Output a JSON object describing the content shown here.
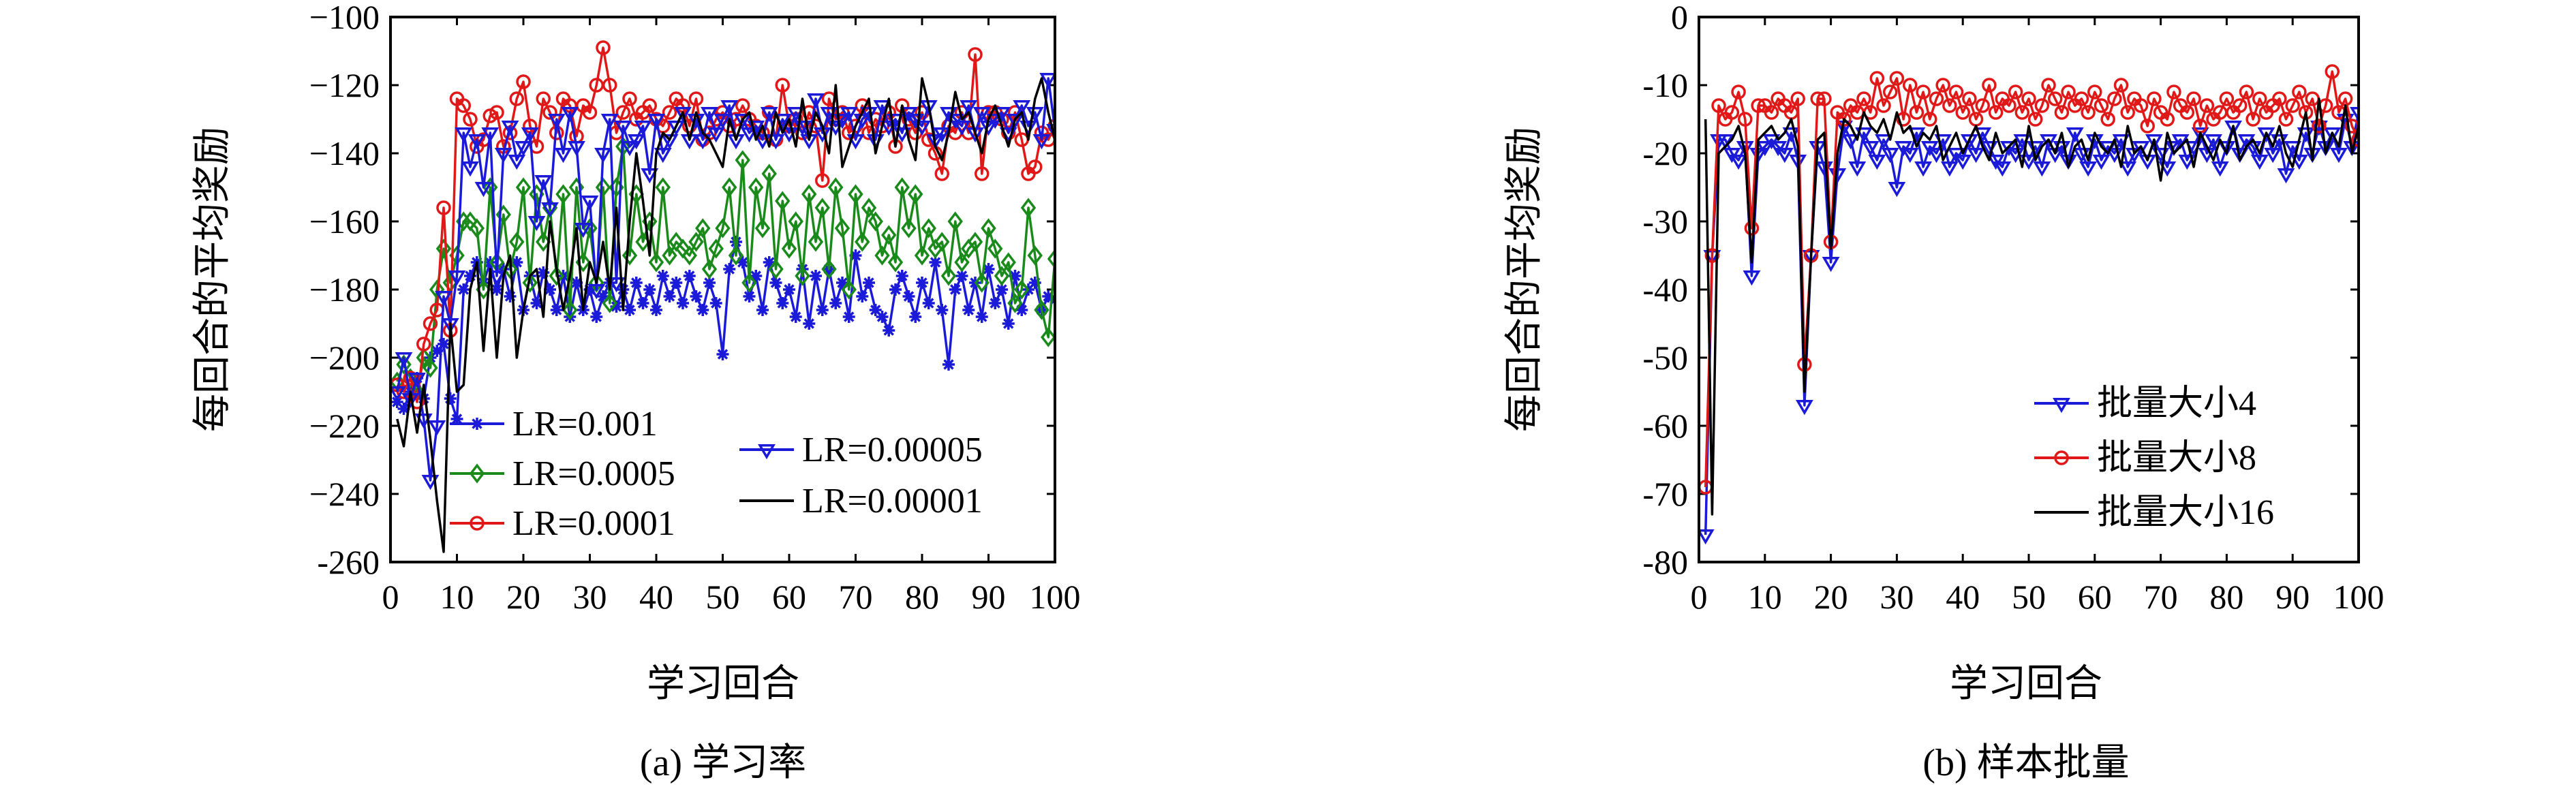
{
  "chart_data": [
    {
      "type": "line",
      "caption": "(a) 学习率",
      "xlabel": "学习回合",
      "ylabel": "每回合的平均奖励",
      "xlim": [
        0,
        100
      ],
      "ylim": [
        -260,
        -100
      ],
      "xticks": [
        "0",
        "10",
        "20",
        "30",
        "40",
        "50",
        "60",
        "70",
        "80",
        "90",
        "100"
      ],
      "yticks": [
        "−100",
        "−120",
        "−140",
        "−160",
        "−180",
        "−200",
        "−220",
        "−240",
        "-260"
      ],
      "grid": false,
      "legend": "bottom (inside, multi-column)",
      "x": [
        1,
        2,
        3,
        4,
        5,
        6,
        7,
        8,
        9,
        10,
        11,
        12,
        13,
        14,
        15,
        16,
        17,
        18,
        19,
        20,
        21,
        22,
        23,
        24,
        25,
        26,
        27,
        28,
        29,
        30,
        31,
        32,
        33,
        34,
        35,
        36,
        37,
        38,
        39,
        40,
        41,
        42,
        43,
        44,
        45,
        46,
        47,
        48,
        49,
        50,
        51,
        52,
        53,
        54,
        55,
        56,
        57,
        58,
        59,
        60,
        61,
        62,
        63,
        64,
        65,
        66,
        67,
        68,
        69,
        70,
        71,
        72,
        73,
        74,
        75,
        76,
        77,
        78,
        79,
        80,
        81,
        82,
        83,
        84,
        85,
        86,
        87,
        88,
        89,
        90,
        91,
        92,
        93,
        94,
        95,
        96,
        97,
        98,
        99,
        100
      ],
      "series": [
        {
          "name": "LR=0.001",
          "color": "#1a1ad8",
          "marker": "asterisk",
          "values": [
            -213,
            -215,
            -210,
            -206,
            -212,
            -200,
            -198,
            -196,
            -212,
            -218,
            -180,
            -176,
            -172,
            -178,
            -172,
            -180,
            -174,
            -182,
            -172,
            -186,
            -176,
            -184,
            -175,
            -180,
            -186,
            -176,
            -188,
            -178,
            -186,
            -180,
            -188,
            -182,
            -178,
            -185,
            -180,
            -186,
            -178,
            -184,
            -180,
            -186,
            -176,
            -182,
            -178,
            -184,
            -176,
            -182,
            -186,
            -178,
            -184,
            -199,
            -174,
            -166,
            -172,
            -182,
            -176,
            -186,
            -172,
            -178,
            -184,
            -180,
            -188,
            -174,
            -190,
            -176,
            -186,
            -174,
            -184,
            -178,
            -188,
            -170,
            -182,
            -178,
            -186,
            -188,
            -192,
            -180,
            -176,
            -182,
            -188,
            -178,
            -184,
            -172,
            -186,
            -202,
            -180,
            -176,
            -186,
            -178,
            -188,
            -174,
            -184,
            -180,
            -190,
            -176,
            -186,
            -180,
            -178,
            -186,
            -182,
            -183
          ]
        },
        {
          "name": "LR=0.0005",
          "color": "#1a8a1a",
          "marker": "diamond",
          "values": [
            -207,
            -202,
            -206,
            -210,
            -200,
            -203,
            -180,
            -168,
            -178,
            -170,
            -160,
            -160,
            -162,
            -180,
            -150,
            -172,
            -158,
            -174,
            -166,
            -150,
            -178,
            -152,
            -166,
            -156,
            -176,
            -152,
            -186,
            -150,
            -172,
            -162,
            -178,
            -150,
            -184,
            -150,
            -138,
            -170,
            -152,
            -166,
            -160,
            -172,
            -150,
            -170,
            -166,
            -168,
            -170,
            -166,
            -162,
            -174,
            -168,
            -162,
            -150,
            -170,
            -142,
            -178,
            -150,
            -162,
            -146,
            -174,
            -154,
            -168,
            -160,
            -176,
            -152,
            -166,
            -156,
            -174,
            -150,
            -162,
            -180,
            -152,
            -166,
            -156,
            -160,
            -170,
            -164,
            -172,
            -150,
            -162,
            -152,
            -170,
            -162,
            -168,
            -166,
            -176,
            -160,
            -172,
            -168,
            -166,
            -178,
            -162,
            -168,
            -176,
            -172,
            -184,
            -180,
            -156,
            -170,
            -186,
            -194,
            -171
          ]
        },
        {
          "name": "LR=0.0001",
          "color": "#e01818",
          "marker": "circle",
          "values": [
            -208,
            -210,
            -206,
            -213,
            -196,
            -190,
            -186,
            -156,
            -192,
            -124,
            -126,
            -130,
            -138,
            -136,
            -129,
            -128,
            -138,
            -134,
            -124,
            -119,
            -132,
            -138,
            -124,
            -128,
            -134,
            -124,
            -126,
            -135,
            -126,
            -128,
            -120,
            -109,
            -120,
            -134,
            -128,
            -124,
            -130,
            -128,
            -126,
            -130,
            -132,
            -128,
            -124,
            -126,
            -132,
            -124,
            -136,
            -134,
            -130,
            -128,
            -132,
            -130,
            -126,
            -130,
            -132,
            -134,
            -128,
            -136,
            -120,
            -132,
            -130,
            -134,
            -128,
            -132,
            -148,
            -124,
            -130,
            -128,
            -134,
            -132,
            -126,
            -134,
            -130,
            -132,
            -128,
            -138,
            -126,
            -130,
            -134,
            -128,
            -136,
            -140,
            -146,
            -132,
            -134,
            -128,
            -134,
            -111,
            -146,
            -128,
            -128,
            -130,
            -134,
            -128,
            -136,
            -146,
            -144,
            -134,
            -136,
            -132
          ]
        },
        {
          "name": "LR=0.00005",
          "color": "#1a1ad8",
          "marker": "triangle-down",
          "values": [
            -210,
            -200,
            -212,
            -206,
            -218,
            -236,
            -220,
            -182,
            -190,
            -176,
            -134,
            -144,
            -136,
            -150,
            -134,
            -176,
            -140,
            -132,
            -142,
            -138,
            -134,
            -160,
            -148,
            -156,
            -130,
            -140,
            -128,
            -138,
            -162,
            -154,
            -180,
            -140,
            -130,
            -178,
            -132,
            -138,
            -136,
            -132,
            -146,
            -130,
            -140,
            -136,
            -132,
            -128,
            -136,
            -130,
            -136,
            -128,
            -134,
            -130,
            -126,
            -136,
            -130,
            -134,
            -132,
            -136,
            -128,
            -136,
            -130,
            -134,
            -128,
            -132,
            -136,
            -124,
            -134,
            -128,
            -132,
            -130,
            -128,
            -136,
            -130,
            -128,
            -136,
            -126,
            -132,
            -130,
            -134,
            -128,
            -130,
            -132,
            -126,
            -136,
            -134,
            -128,
            -130,
            -132,
            -126,
            -134,
            -128,
            -132,
            -130,
            -128,
            -134,
            -130,
            -126,
            -132,
            -128,
            -136,
            -118,
            -133
          ]
        },
        {
          "name": "LR=0.00001",
          "color": "#000000",
          "marker": "none",
          "values": [
            -218,
            -226,
            -210,
            -222,
            -208,
            -224,
            -242,
            -257,
            -190,
            -210,
            -208,
            -180,
            -172,
            -198,
            -174,
            -200,
            -176,
            -170,
            -200,
            -186,
            -176,
            -174,
            -188,
            -160,
            -174,
            -186,
            -176,
            -162,
            -186,
            -172,
            -178,
            -166,
            -180,
            -156,
            -186,
            -160,
            -140,
            -154,
            -170,
            -140,
            -134,
            -136,
            -132,
            -128,
            -136,
            -128,
            -134,
            -136,
            -140,
            -144,
            -130,
            -136,
            -130,
            -128,
            -136,
            -132,
            -138,
            -128,
            -134,
            -130,
            -138,
            -124,
            -136,
            -128,
            -132,
            -140,
            -120,
            -144,
            -138,
            -132,
            -128,
            -124,
            -140,
            -132,
            -124,
            -138,
            -126,
            -136,
            -142,
            -118,
            -126,
            -138,
            -142,
            -134,
            -122,
            -130,
            -128,
            -134,
            -140,
            -130,
            -126,
            -132,
            -138,
            -130,
            -128,
            -136,
            -124,
            -118,
            -128,
            -136
          ]
        }
      ]
    },
    {
      "type": "line",
      "caption": "(b) 样本批量",
      "xlabel": "学习回合",
      "ylabel": "每回合的平均奖励",
      "xlim": [
        0,
        100
      ],
      "ylim": [
        -80,
        0
      ],
      "xticks": [
        "0",
        "10",
        "20",
        "30",
        "40",
        "50",
        "60",
        "70",
        "80",
        "90",
        "100"
      ],
      "yticks": [
        "0",
        "-10",
        "-20",
        "-30",
        "-40",
        "-50",
        "-60",
        "-70",
        "-80"
      ],
      "grid": false,
      "legend": "lower right",
      "x": [
        1,
        2,
        3,
        4,
        5,
        6,
        7,
        8,
        9,
        10,
        11,
        12,
        13,
        14,
        15,
        16,
        17,
        18,
        19,
        20,
        21,
        22,
        23,
        24,
        25,
        26,
        27,
        28,
        29,
        30,
        31,
        32,
        33,
        34,
        35,
        36,
        37,
        38,
        39,
        40,
        41,
        42,
        43,
        44,
        45,
        46,
        47,
        48,
        49,
        50,
        51,
        52,
        53,
        54,
        55,
        56,
        57,
        58,
        59,
        60,
        61,
        62,
        63,
        64,
        65,
        66,
        67,
        68,
        69,
        70,
        71,
        72,
        73,
        74,
        75,
        76,
        77,
        78,
        79,
        80,
        81,
        82,
        83,
        84,
        85,
        86,
        87,
        88,
        89,
        90,
        91,
        92,
        93,
        94,
        95,
        96,
        97,
        98,
        99,
        100
      ],
      "series": [
        {
          "name": "批量大小4",
          "color": "#1a1ad8",
          "marker": "triangle-down",
          "values": [
            -76,
            -35,
            -18,
            -18,
            -20,
            -21,
            -19,
            -38,
            -20,
            -19,
            -18,
            -19,
            -20,
            -17,
            -21,
            -57,
            -35,
            -19,
            -22,
            -36,
            -23,
            -16,
            -18,
            -22,
            -17,
            -19,
            -21,
            -18,
            -20,
            -25,
            -19,
            -20,
            -17,
            -22,
            -19,
            -20,
            -18,
            -22,
            -20,
            -21,
            -18,
            -20,
            -17,
            -19,
            -21,
            -22,
            -19,
            -20,
            -18,
            -21,
            -19,
            -22,
            -18,
            -20,
            -19,
            -21,
            -17,
            -20,
            -22,
            -18,
            -21,
            -19,
            -20,
            -18,
            -22,
            -20,
            -19,
            -21,
            -18,
            -20,
            -22,
            -19,
            -18,
            -21,
            -19,
            -17,
            -20,
            -18,
            -22,
            -19,
            -16,
            -20,
            -18,
            -19,
            -21,
            -17,
            -20,
            -18,
            -23,
            -19,
            -21,
            -17,
            -20,
            -16,
            -19,
            -17,
            -20,
            -15,
            -19,
            -14
          ]
        },
        {
          "name": "批量大小8",
          "color": "#e01818",
          "marker": "circle",
          "values": [
            -69,
            -35,
            -13,
            -15,
            -14,
            -11,
            -15,
            -31,
            -13,
            -13,
            -14,
            -12,
            -13,
            -14,
            -12,
            -51,
            -35,
            -12,
            -12,
            -33,
            -14,
            -15,
            -13,
            -14,
            -12,
            -14,
            -9,
            -13,
            -11,
            -9,
            -15,
            -10,
            -14,
            -11,
            -15,
            -12,
            -10,
            -13,
            -11,
            -14,
            -12,
            -15,
            -13,
            -10,
            -14,
            -12,
            -13,
            -11,
            -14,
            -12,
            -15,
            -13,
            -10,
            -12,
            -14,
            -11,
            -13,
            -12,
            -14,
            -11,
            -13,
            -15,
            -12,
            -10,
            -14,
            -12,
            -13,
            -16,
            -12,
            -14,
            -15,
            -11,
            -13,
            -14,
            -12,
            -16,
            -13,
            -15,
            -14,
            -12,
            -14,
            -13,
            -11,
            -15,
            -12,
            -14,
            -13,
            -12,
            -15,
            -13,
            -11,
            -14,
            -12,
            -16,
            -13,
            -8,
            -14,
            -12,
            -16,
            -18
          ]
        },
        {
          "name": "批量大小16",
          "color": "#000000",
          "marker": "none",
          "values": [
            -15,
            -73,
            -20,
            -19,
            -18,
            -16,
            -20,
            -36,
            -18,
            -17,
            -16,
            -18,
            -17,
            -15,
            -19,
            -55,
            -35,
            -18,
            -17,
            -34,
            -20,
            -15,
            -16,
            -18,
            -14,
            -16,
            -17,
            -15,
            -18,
            -14,
            -17,
            -16,
            -19,
            -17,
            -18,
            -16,
            -21,
            -19,
            -17,
            -20,
            -18,
            -16,
            -19,
            -21,
            -17,
            -20,
            -19,
            -18,
            -22,
            -16,
            -21,
            -19,
            -18,
            -20,
            -17,
            -22,
            -19,
            -18,
            -21,
            -17,
            -19,
            -20,
            -18,
            -22,
            -16,
            -20,
            -19,
            -21,
            -18,
            -24,
            -17,
            -20,
            -19,
            -18,
            -22,
            -17,
            -19,
            -21,
            -18,
            -20,
            -16,
            -21,
            -19,
            -18,
            -20,
            -17,
            -19,
            -16,
            -20,
            -22,
            -18,
            -14,
            -21,
            -12,
            -20,
            -17,
            -19,
            -13,
            -20,
            -16
          ]
        }
      ]
    }
  ]
}
